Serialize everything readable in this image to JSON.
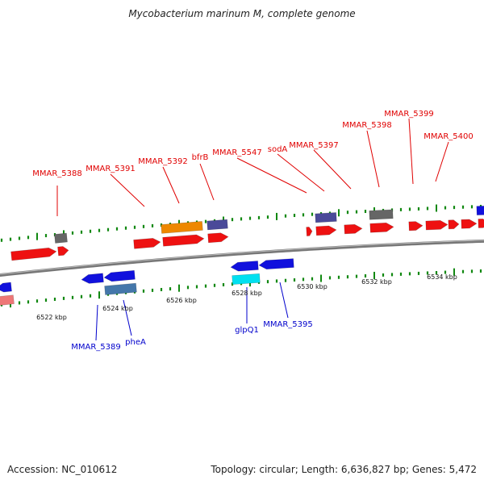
{
  "title": "Mycobacterium marinum M, complete genome",
  "footer": {
    "accession": "Accession: NC_010612",
    "info": "Topology: circular; Length: 6,636,827 bp; Genes: 5,472"
  },
  "colors": {
    "gene_red": "#ee1111",
    "gene_blue": "#1111dd",
    "gene_gray": "#666666",
    "gene_orange": "#ee8800",
    "gene_slate": "#4a4a99",
    "gene_steel": "#4477aa",
    "gene_cyan": "#00e0f0",
    "gene_pink": "#ee7777",
    "ticks": "#118811",
    "backbone": "#777777",
    "label_top": "#e00000",
    "label_bottom": "#0000cc"
  },
  "tick_labels": [
    "6522 kbp",
    "6524 kbp",
    "6526 kbp",
    "6528 kbp",
    "6530 kbp",
    "6532 kbp",
    "6534 kbp"
  ],
  "gene_labels_top": [
    "MMAR_5388",
    "MMAR_5391",
    "MMAR_5392",
    "bfrB",
    "MMAR_5547",
    "sodA",
    "MMAR_5397",
    "MMAR_5398",
    "MMAR_5399",
    "MMAR_5400"
  ],
  "gene_labels_bottom": [
    "MMAR_5389",
    "pheA",
    "glpQ1",
    "MMAR_5395"
  ]
}
